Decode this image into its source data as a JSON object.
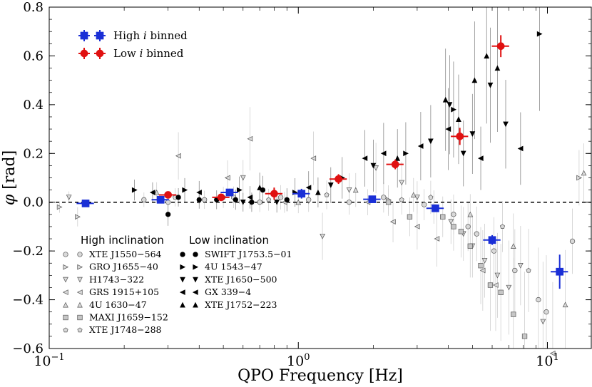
{
  "chart_data": {
    "type": "scatter",
    "xscale": "log",
    "xlim": [
      0.1,
      15
    ],
    "ylim": [
      -0.6,
      0.8
    ],
    "xlabel": "QPO Frequency [Hz]",
    "ylabel": "φ [rad]",
    "xtick_labels": [
      {
        "value": 0.1,
        "base": "10",
        "exp": "−1"
      },
      {
        "value": 1,
        "base": "10",
        "exp": "0"
      },
      {
        "value": 10,
        "base": "10",
        "exp": "1"
      }
    ],
    "yticks": [
      -0.6,
      -0.4,
      -0.2,
      0.0,
      0.2,
      0.4,
      0.6,
      0.8
    ],
    "ytick_labels": [
      "−0.6",
      "−0.4",
      "−0.2",
      "0.0",
      "0.2",
      "0.4",
      "0.6",
      "0.8"
    ],
    "reference_line": {
      "y": 0,
      "style": "dashed"
    },
    "binned_series": [
      {
        "name": "High i binned",
        "label_prefix": "High ",
        "label_italic": "i",
        "label_suffix": " binned",
        "color": "#1a2fd6",
        "marker": "square",
        "points": [
          {
            "x": 0.14,
            "y": -0.005,
            "yerr": 0.01
          },
          {
            "x": 0.28,
            "y": 0.01,
            "yerr": 0.012
          },
          {
            "x": 0.53,
            "y": 0.04,
            "yerr": 0.015
          },
          {
            "x": 1.03,
            "y": 0.035,
            "yerr": 0.02
          },
          {
            "x": 1.98,
            "y": 0.012,
            "yerr": 0.015
          },
          {
            "x": 3.55,
            "y": -0.025,
            "yerr": 0.015
          },
          {
            "x": 6.0,
            "y": -0.155,
            "yerr": 0.02
          },
          {
            "x": 11.2,
            "y": -0.285,
            "yerr": 0.07
          }
        ]
      },
      {
        "name": "Low i binned",
        "label_prefix": "Low ",
        "label_italic": "i",
        "label_suffix": " binned",
        "color": "#e01010",
        "marker": "circle",
        "points": [
          {
            "x": 0.3,
            "y": 0.03,
            "yerr": 0.012
          },
          {
            "x": 0.49,
            "y": 0.02,
            "yerr": 0.015
          },
          {
            "x": 0.8,
            "y": 0.035,
            "yerr": 0.025
          },
          {
            "x": 1.45,
            "y": 0.095,
            "yerr": 0.02
          },
          {
            "x": 2.45,
            "y": 0.155,
            "yerr": 0.02
          },
          {
            "x": 4.45,
            "y": 0.27,
            "yerr": 0.035
          },
          {
            "x": 6.5,
            "y": 0.64,
            "yerr": 0.045
          }
        ]
      }
    ],
    "high_inclination_title": "High inclination",
    "low_inclination_title": "Low inclination",
    "high_inclination_sources": [
      {
        "name": "XTE J1550−564",
        "marker": "circle",
        "fill": "#d9d9d9",
        "points": [
          [
            0.24,
            0.01
          ],
          [
            0.3,
            0.0
          ],
          [
            0.42,
            0.01
          ],
          [
            0.55,
            0.02
          ],
          [
            0.7,
            0.0
          ],
          [
            0.85,
            0.02
          ],
          [
            1.1,
            0.01
          ],
          [
            1.6,
            0.0
          ],
          [
            2.2,
            0.02
          ],
          [
            3.2,
            -0.01
          ],
          [
            4.2,
            -0.05
          ],
          [
            4.8,
            -0.1
          ],
          [
            5.2,
            -0.13
          ],
          [
            6.1,
            -0.2
          ],
          [
            7.4,
            -0.28
          ],
          [
            9.2,
            -0.4
          ],
          [
            9.9,
            -0.45
          ],
          [
            12.6,
            -0.16
          ]
        ]
      },
      {
        "name": "GRO J1655−40",
        "marker": "tri-right",
        "fill": "#d9d9d9",
        "points": [
          [
            0.11,
            -0.02
          ],
          [
            0.13,
            -0.06
          ],
          [
            2.3,
            0.01
          ],
          [
            13.4,
            0.1
          ]
        ]
      },
      {
        "name": "H1743−322",
        "marker": "tri-down",
        "fill": "#d9d9d9",
        "points": [
          [
            0.12,
            0.02
          ],
          [
            0.6,
            0.1
          ],
          [
            1.25,
            -0.14
          ],
          [
            1.6,
            0.05
          ],
          [
            2.05,
            0.14
          ],
          [
            2.6,
            0.08
          ],
          [
            3.0,
            0.02
          ],
          [
            3.5,
            -0.02
          ],
          [
            4.1,
            -0.08
          ],
          [
            4.6,
            -0.13
          ],
          [
            5.0,
            -0.18
          ],
          [
            5.6,
            -0.24
          ],
          [
            6.3,
            -0.3
          ],
          [
            7.0,
            -0.35
          ],
          [
            7.8,
            -0.26
          ],
          [
            9.6,
            -0.49
          ]
        ]
      },
      {
        "name": "GRS 1915+105",
        "marker": "tri-left",
        "fill": "#d9d9d9",
        "points": [
          [
            0.33,
            0.19
          ],
          [
            0.52,
            0.1
          ],
          [
            0.64,
            0.26
          ],
          [
            0.88,
            0.0
          ],
          [
            1.15,
            0.18
          ],
          [
            1.9,
            0.0
          ],
          [
            2.4,
            -0.08
          ],
          [
            3.0,
            -0.1
          ],
          [
            3.6,
            -0.15
          ],
          [
            5.5,
            -0.28
          ],
          [
            6.2,
            -0.34
          ],
          [
            10.5,
            -0.62
          ]
        ]
      },
      {
        "name": "4U 1630−47",
        "marker": "tri-up",
        "fill": "#d9d9d9",
        "points": [
          [
            0.27,
            0.04
          ],
          [
            1.0,
            0.0
          ],
          [
            1.7,
            0.05
          ],
          [
            2.9,
            0.03
          ],
          [
            4.9,
            -0.05
          ],
          [
            7.3,
            -0.18
          ],
          [
            11.8,
            -0.42
          ],
          [
            14.0,
            0.12
          ]
        ]
      },
      {
        "name": "MAXI J1659−152",
        "marker": "square",
        "fill": "#c6c6c6",
        "points": [
          [
            2.3,
            0.0
          ],
          [
            2.8,
            -0.06
          ],
          [
            3.8,
            -0.06
          ],
          [
            4.2,
            -0.1
          ],
          [
            4.5,
            -0.12
          ],
          [
            4.9,
            -0.18
          ],
          [
            5.4,
            -0.26
          ],
          [
            5.9,
            -0.34
          ],
          [
            6.5,
            -0.37
          ],
          [
            7.3,
            -0.46
          ],
          [
            8.1,
            -0.55
          ]
        ]
      },
      {
        "name": "XTE J1748−288",
        "marker": "pentagon",
        "fill": "#d9d9d9",
        "points": [
          [
            0.32,
            0.02
          ],
          [
            0.5,
            0.02
          ],
          [
            0.76,
            0.01
          ],
          [
            1.3,
            0.03
          ],
          [
            2.6,
            0.01
          ],
          [
            3.4,
            0.02
          ],
          [
            6.6,
            -0.1
          ],
          [
            8.4,
            -0.28
          ]
        ]
      }
    ],
    "low_inclination_sources": [
      {
        "name": "SWIFT J1753.5−01",
        "marker": "circle",
        "fill": "#000000",
        "points": [
          [
            0.3,
            -0.05
          ],
          [
            0.33,
            0.02
          ],
          [
            0.4,
            0.01
          ],
          [
            0.47,
            0.01
          ],
          [
            0.56,
            0.01
          ],
          [
            0.65,
            0.0
          ],
          [
            0.72,
            0.05
          ],
          [
            0.9,
            0.01
          ]
        ]
      },
      {
        "name": "4U 1543−47",
        "marker": "tri-right",
        "fill": "#000000",
        "points": [
          [
            0.22,
            0.05
          ],
          [
            0.35,
            0.05
          ],
          [
            0.58,
            0.05
          ],
          [
            0.97,
            0.04
          ],
          [
            1.5,
            0.1
          ],
          [
            2.7,
            0.2
          ],
          [
            4.2,
            0.38
          ],
          [
            9.3,
            0.69
          ]
        ]
      },
      {
        "name": "XTE J1650−500",
        "marker": "tri-down",
        "fill": "#000000",
        "points": [
          [
            0.6,
            0.0
          ],
          [
            0.82,
            0.0
          ],
          [
            1.35,
            0.07
          ],
          [
            2.0,
            0.15
          ],
          [
            3.4,
            0.25
          ],
          [
            4.05,
            0.4
          ],
          [
            4.6,
            0.2
          ],
          [
            5.0,
            0.28
          ],
          [
            5.9,
            0.48
          ],
          [
            6.8,
            0.32
          ]
        ]
      },
      {
        "name": "GX 339−4",
        "marker": "tri-left",
        "fill": "#000000",
        "points": [
          [
            0.26,
            0.04
          ],
          [
            0.4,
            0.04
          ],
          [
            0.64,
            0.02
          ],
          [
            1.1,
            0.06
          ],
          [
            1.85,
            0.18
          ],
          [
            2.2,
            0.2
          ],
          [
            3.1,
            0.23
          ],
          [
            4.0,
            0.3
          ],
          [
            5.4,
            0.18
          ],
          [
            7.8,
            0.22
          ]
        ]
      },
      {
        "name": "XTE J1752−223",
        "marker": "tri-up",
        "fill": "#000000",
        "points": [
          [
            0.7,
            0.06
          ],
          [
            1.2,
            0.04
          ],
          [
            2.5,
            0.18
          ],
          [
            3.9,
            0.42
          ],
          [
            4.4,
            0.34
          ],
          [
            5.1,
            0.5
          ],
          [
            5.7,
            0.6
          ],
          [
            6.3,
            0.55
          ]
        ]
      }
    ]
  }
}
